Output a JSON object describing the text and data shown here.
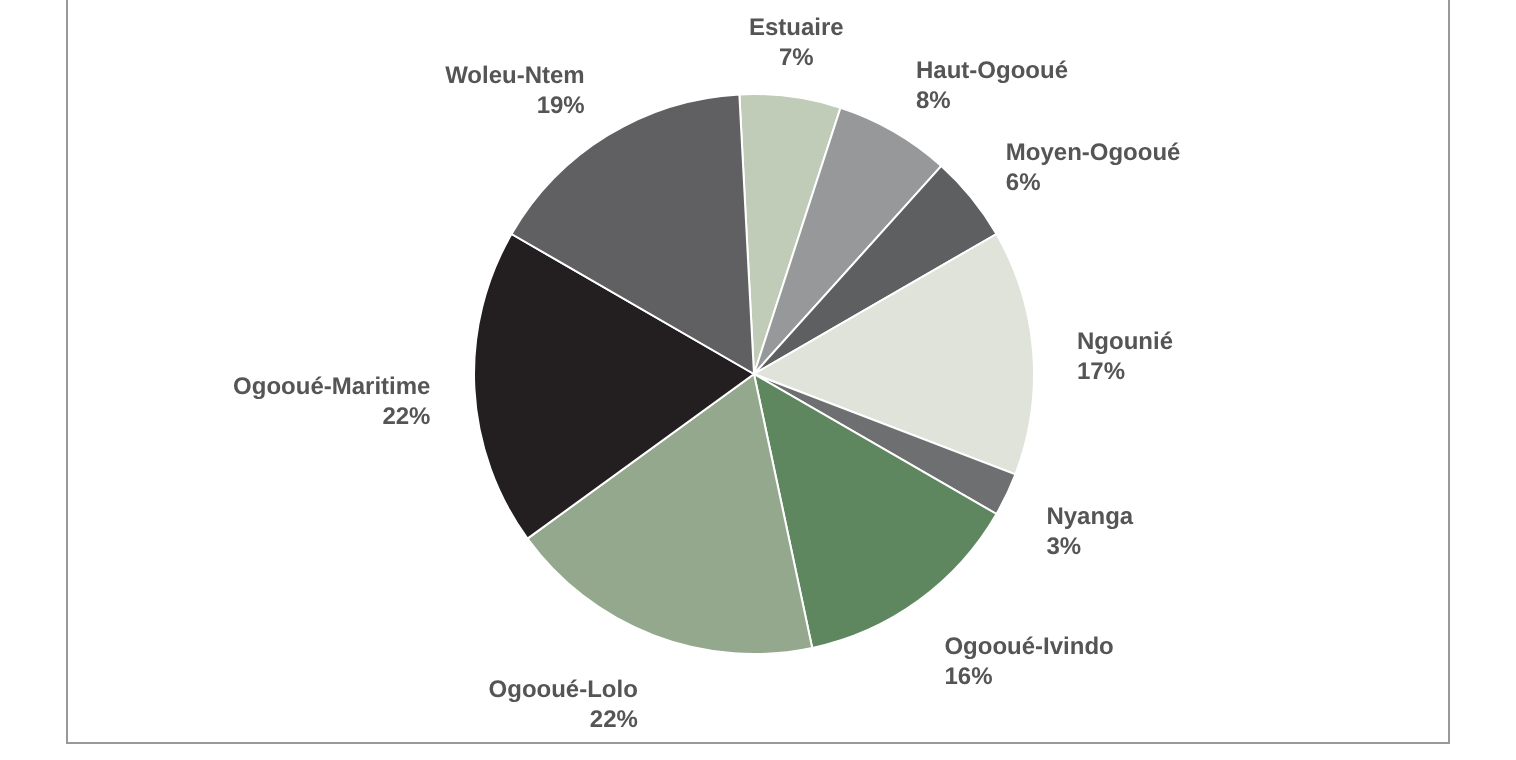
{
  "chart_data": {
    "type": "pie",
    "categories": [
      "Estuaire",
      "Haut-Ogooué",
      "Moyen-Ogooué",
      "Ngounié",
      "Nyanga",
      "Ogooué-Ivindo",
      "Ogooué-Lolo",
      "Ogooué-Maritime",
      "Woleu-Ntem"
    ],
    "values": [
      7,
      8,
      6,
      17,
      3,
      16,
      22,
      22,
      19
    ],
    "value_labels": [
      "7%",
      "8%",
      "6%",
      "17%",
      "3%",
      "16%",
      "22%",
      "22%",
      "19%"
    ],
    "colors": [
      "#c0cbb8",
      "#96989a",
      "#5e5f61",
      "#dfe3da",
      "#6e6f71",
      "#5e8760",
      "#93a88d",
      "#231f20",
      "#606062"
    ],
    "legend": false
  }
}
